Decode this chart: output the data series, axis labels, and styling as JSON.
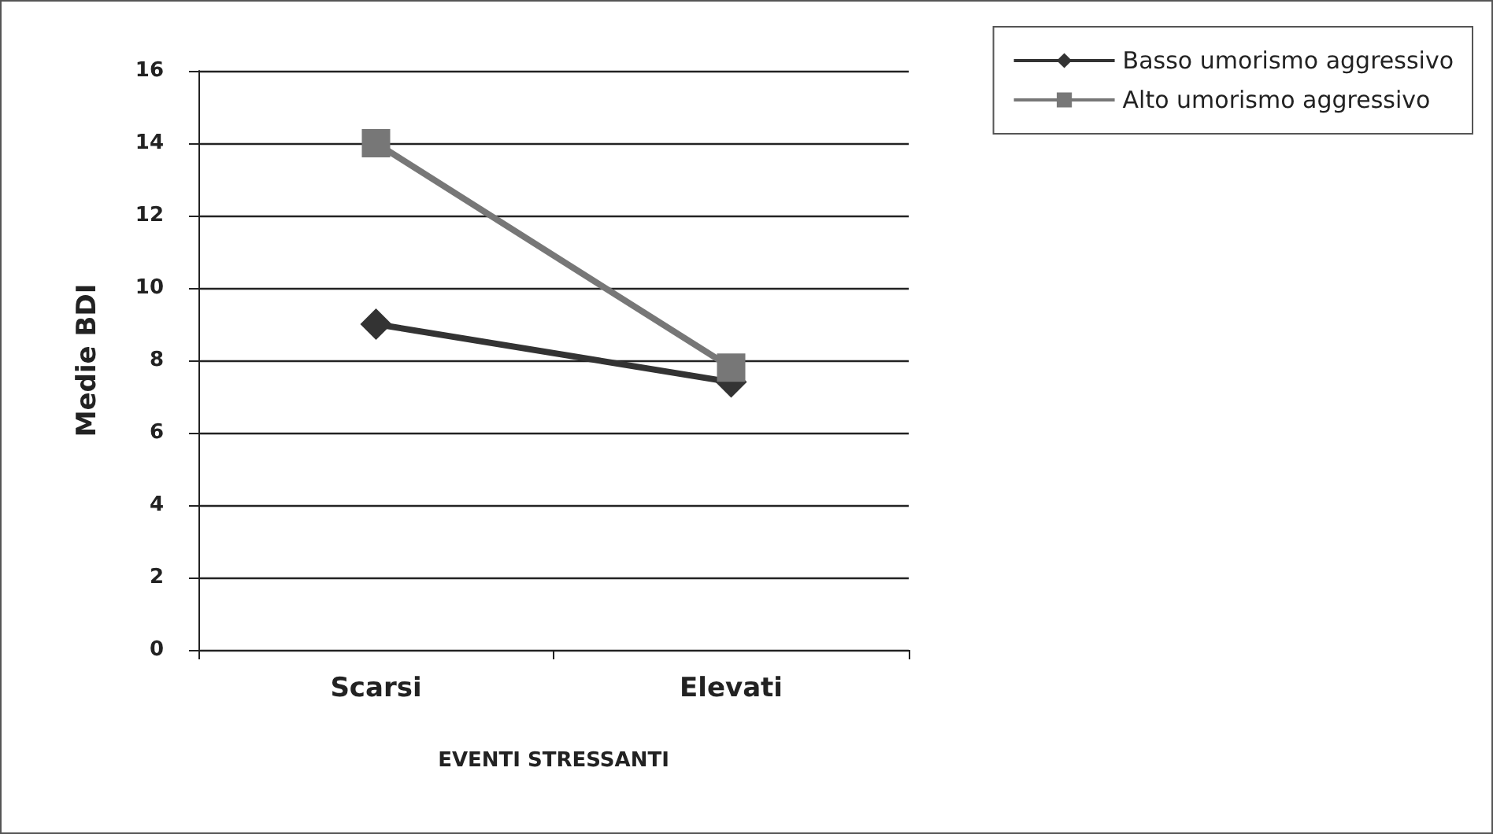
{
  "chart_data": {
    "type": "line",
    "xlabel": "EVENTI STRESSANTI",
    "ylabel": "Medie BDI",
    "categories": [
      "Scarsi",
      "Elevati"
    ],
    "series": [
      {
        "name": "Basso umorismo aggressivo",
        "color": "#333333",
        "marker": "diamond",
        "values": [
          9.0,
          7.4
        ]
      },
      {
        "name": "Alto umorismo aggressivo",
        "color": "#777777",
        "marker": "square",
        "values": [
          14.0,
          7.8
        ]
      }
    ],
    "ylim": [
      0,
      16
    ],
    "yticks": [
      0,
      2,
      4,
      6,
      8,
      10,
      12,
      14,
      16
    ],
    "grid": "y",
    "legend": "top right",
    "line_style": "solid"
  }
}
